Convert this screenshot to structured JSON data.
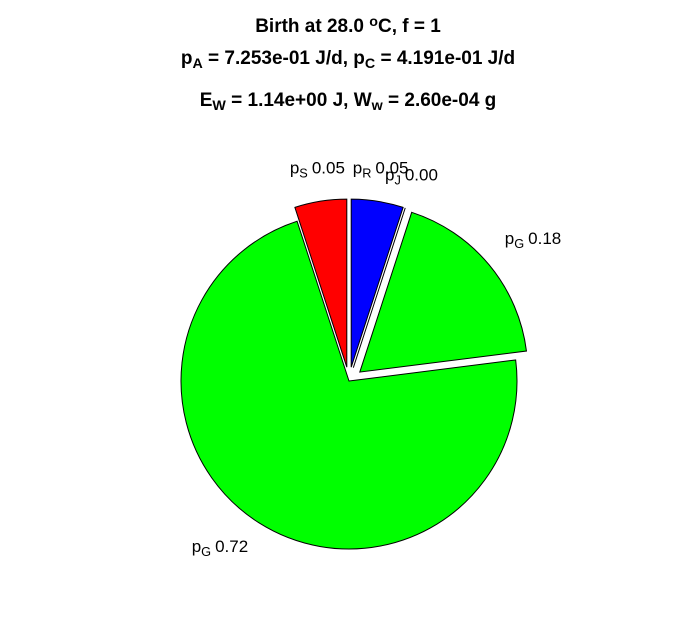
{
  "chart_data": {
    "type": "pie",
    "title": [
      [
        {
          "text": "Birth at 28.0 "
        },
        {
          "text": "o",
          "shift": "sup"
        },
        {
          "text": "C, f = 1"
        }
      ],
      [
        {
          "text": "p"
        },
        {
          "text": "A",
          "shift": "sub"
        },
        {
          "text": " = 7.253e-01 J/d, p"
        },
        {
          "text": "C",
          "shift": "sub"
        },
        {
          "text": " = 4.191e-01 J/d"
        }
      ],
      [
        {
          "text": "E"
        },
        {
          "text": "W",
          "shift": "sub"
        },
        {
          "text": " = 1.14e+00 J, W"
        },
        {
          "text": "w",
          "shift": "sub"
        },
        {
          "text": " = 2.60e-04 g"
        }
      ]
    ],
    "categories": [
      [
        {
          "text": "p"
        },
        {
          "text": "R",
          "shift": "sub"
        }
      ],
      [
        {
          "text": "p"
        },
        {
          "text": "J",
          "shift": "sub"
        }
      ],
      [
        {
          "text": "p"
        },
        {
          "text": "G",
          "shift": "sub"
        }
      ],
      [
        {
          "text": "p"
        },
        {
          "text": "G",
          "shift": "sub"
        }
      ],
      [
        {
          "text": "p"
        },
        {
          "text": "S",
          "shift": "sub"
        }
      ]
    ],
    "values": [
      0.05,
      0.0,
      0.18,
      0.72,
      0.05
    ],
    "value_labels": [
      "0.05",
      "0.00",
      "0.18",
      "0.72",
      "0.05"
    ],
    "colors": [
      "#0000ff",
      "#ff00ff",
      "#00ff00",
      "#00ff00",
      "#ff0000"
    ],
    "explode": [
      true,
      true,
      true,
      false,
      true
    ],
    "direction": "clockwise"
  }
}
